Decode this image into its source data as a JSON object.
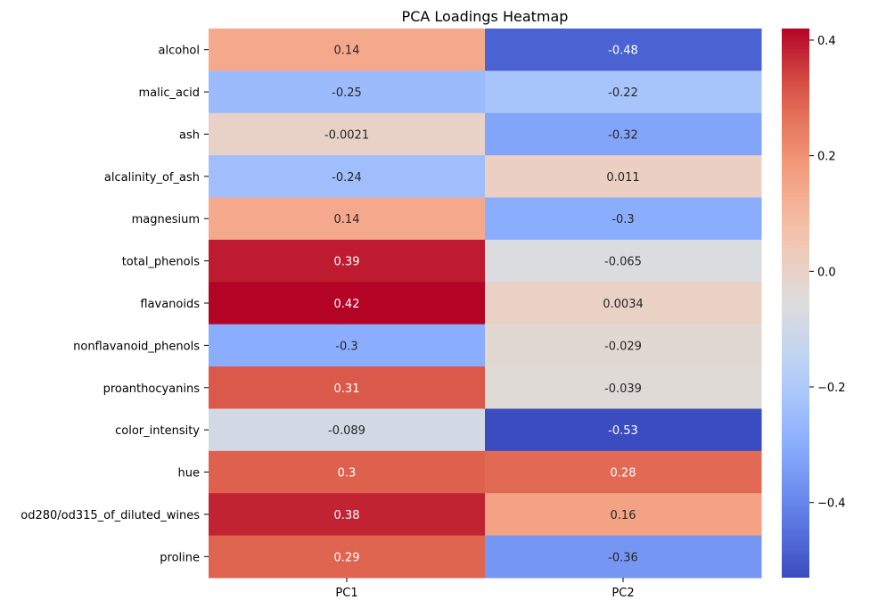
{
  "chart_data": {
    "type": "heatmap",
    "title": "PCA Loadings Heatmap",
    "xlabel": "",
    "ylabel": "",
    "x_categories": [
      "PC1",
      "PC2"
    ],
    "y_categories": [
      "alcohol",
      "malic_acid",
      "ash",
      "alcalinity_of_ash",
      "magnesium",
      "total_phenols",
      "flavanoids",
      "nonflavanoid_phenols",
      "proanthocyanins",
      "color_intensity",
      "hue",
      "od280/od315_of_diluted_wines",
      "proline"
    ],
    "values": [
      [
        0.14,
        -0.48
      ],
      [
        -0.25,
        -0.22
      ],
      [
        -0.0021,
        -0.32
      ],
      [
        -0.24,
        0.011
      ],
      [
        0.14,
        -0.3
      ],
      [
        0.39,
        -0.065
      ],
      [
        0.42,
        0.0034
      ],
      [
        -0.3,
        -0.029
      ],
      [
        0.31,
        -0.039
      ],
      [
        -0.089,
        -0.53
      ],
      [
        0.3,
        0.28
      ],
      [
        0.38,
        0.16
      ],
      [
        0.29,
        -0.36
      ]
    ],
    "cell_labels": [
      [
        "0.14",
        "-0.48"
      ],
      [
        "-0.25",
        "-0.22"
      ],
      [
        "-0.0021",
        "-0.32"
      ],
      [
        "-0.24",
        "0.011"
      ],
      [
        "0.14",
        "-0.3"
      ],
      [
        "0.39",
        "-0.065"
      ],
      [
        "0.42",
        "0.0034"
      ],
      [
        "-0.3",
        "-0.029"
      ],
      [
        "0.31",
        "-0.039"
      ],
      [
        "-0.089",
        "-0.53"
      ],
      [
        "0.3",
        "0.28"
      ],
      [
        "0.38",
        "0.16"
      ],
      [
        "0.29",
        "-0.36"
      ]
    ],
    "colormap": "coolwarm",
    "vmin": -0.53,
    "vmax": 0.42,
    "colorbar_ticks": [
      0.4,
      0.2,
      0.0,
      -0.2,
      -0.4
    ],
    "colorbar_tick_labels": [
      "0.4",
      "0.2",
      "0.0",
      "−0.2",
      "−0.4"
    ]
  }
}
